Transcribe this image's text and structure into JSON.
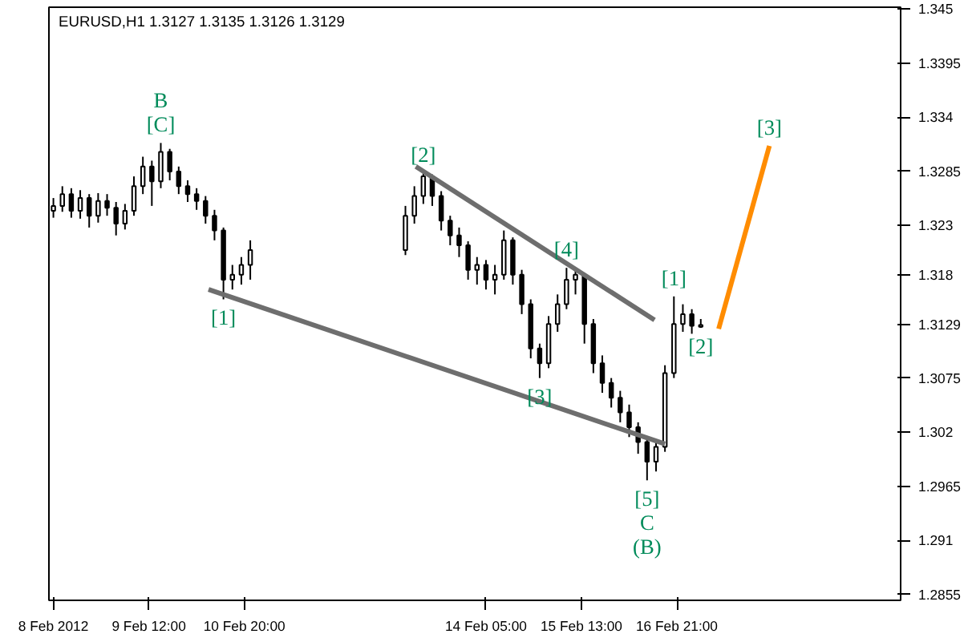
{
  "chart_data": {
    "type": "candlestick",
    "title": "EURUSD,H1  1.3127 1.3135 1.3126 1.3129",
    "color": "#000000",
    "x": [
      "2012-02-08T04:00",
      "2012-02-08T07:00",
      "2012-02-08T10:00",
      "2012-02-08T13:00",
      "2012-02-08T16:00",
      "2012-02-08T19:00",
      "2012-02-08T22:00",
      "2012-02-09T01:00",
      "2012-02-09T04:00",
      "2012-02-09T07:00",
      "2012-02-09T10:00",
      "2012-02-09T13:00",
      "2012-02-09T16:00",
      "2012-02-09T19:00",
      "2012-02-09T22:00",
      "2012-02-10T01:00",
      "2012-02-10T04:00",
      "2012-02-10T07:00",
      "2012-02-10T10:00",
      "2012-02-10T13:00",
      "2012-02-10T16:00",
      "2012-02-10T19:00",
      "2012-02-10T22:00",
      "2012-02-13T02:00",
      "2012-02-13T05:00",
      "2012-02-13T08:00",
      "2012-02-13T11:00",
      "2012-02-13T14:00",
      "2012-02-13T17:00",
      "2012-02-13T20:00",
      "2012-02-13T23:00",
      "2012-02-14T02:00",
      "2012-02-14T05:00",
      "2012-02-14T08:00",
      "2012-02-14T11:00",
      "2012-02-14T14:00",
      "2012-02-14T17:00",
      "2012-02-14T20:00",
      "2012-02-14T23:00",
      "2012-02-15T02:00",
      "2012-02-15T05:00",
      "2012-02-15T08:00",
      "2012-02-15T11:00",
      "2012-02-15T14:00",
      "2012-02-15T17:00",
      "2012-02-15T20:00",
      "2012-02-15T23:00",
      "2012-02-16T02:00",
      "2012-02-16T05:00",
      "2012-02-16T08:00",
      "2012-02-16T11:00",
      "2012-02-16T14:00",
      "2012-02-16T17:00",
      "2012-02-16T20:00",
      "2012-02-16T23:00",
      "2012-02-17T02:00",
      "2012-02-17T05:00"
    ],
    "ohlc": [
      [
        1.3245,
        1.3258,
        1.3238,
        1.325
      ],
      [
        1.325,
        1.327,
        1.3244,
        1.3262
      ],
      [
        1.3262,
        1.3268,
        1.3238,
        1.3245
      ],
      [
        1.3245,
        1.3266,
        1.3237,
        1.3258
      ],
      [
        1.3258,
        1.3262,
        1.3228,
        1.324
      ],
      [
        1.324,
        1.3263,
        1.3233,
        1.3255
      ],
      [
        1.3255,
        1.3262,
        1.324,
        1.3248
      ],
      [
        1.3248,
        1.3254,
        1.322,
        1.3232
      ],
      [
        1.3232,
        1.3252,
        1.3226,
        1.3245
      ],
      [
        1.3245,
        1.328,
        1.324,
        1.327
      ],
      [
        1.327,
        1.33,
        1.3262,
        1.329
      ],
      [
        1.329,
        1.3296,
        1.325,
        1.3275
      ],
      [
        1.3275,
        1.3314,
        1.3268,
        1.3305
      ],
      [
        1.3305,
        1.3308,
        1.3276,
        1.3285
      ],
      [
        1.3285,
        1.329,
        1.3262,
        1.327
      ],
      [
        1.327,
        1.3276,
        1.3254,
        1.3262
      ],
      [
        1.3262,
        1.3268,
        1.3246,
        1.3255
      ],
      [
        1.3255,
        1.326,
        1.3232,
        1.324
      ],
      [
        1.324,
        1.3246,
        1.3215,
        1.3225
      ],
      [
        1.3225,
        1.3228,
        1.3155,
        1.3175
      ],
      [
        1.3175,
        1.319,
        1.3165,
        1.318
      ],
      [
        1.318,
        1.3198,
        1.317,
        1.319
      ],
      [
        1.319,
        1.3215,
        1.3175,
        1.3205
      ],
      [
        1.3205,
        1.325,
        1.32,
        1.324
      ],
      [
        1.324,
        1.327,
        1.3232,
        1.326
      ],
      [
        1.326,
        1.3283,
        1.3252,
        1.328
      ],
      [
        1.328,
        1.3282,
        1.325,
        1.326
      ],
      [
        1.326,
        1.3265,
        1.3225,
        1.3235
      ],
      [
        1.3235,
        1.324,
        1.321,
        1.322
      ],
      [
        1.322,
        1.3228,
        1.3198,
        1.321
      ],
      [
        1.321,
        1.3214,
        1.3175,
        1.3185
      ],
      [
        1.3185,
        1.3198,
        1.317,
        1.319
      ],
      [
        1.319,
        1.3195,
        1.3165,
        1.3175
      ],
      [
        1.3175,
        1.319,
        1.316,
        1.318
      ],
      [
        1.318,
        1.3225,
        1.3175,
        1.3215
      ],
      [
        1.3215,
        1.3218,
        1.317,
        1.318
      ],
      [
        1.318,
        1.3185,
        1.314,
        1.315
      ],
      [
        1.315,
        1.3155,
        1.3095,
        1.3105
      ],
      [
        1.3105,
        1.311,
        1.3075,
        1.309
      ],
      [
        1.309,
        1.3138,
        1.3085,
        1.313
      ],
      [
        1.313,
        1.316,
        1.3122,
        1.315
      ],
      [
        1.315,
        1.3187,
        1.3145,
        1.3175
      ],
      [
        1.3175,
        1.3185,
        1.316,
        1.318
      ],
      [
        1.318,
        1.3182,
        1.311,
        1.313
      ],
      [
        1.313,
        1.3135,
        1.308,
        1.309
      ],
      [
        1.309,
        1.3098,
        1.306,
        1.307
      ],
      [
        1.307,
        1.3075,
        1.3045,
        1.3055
      ],
      [
        1.3055,
        1.3062,
        1.303,
        1.304
      ],
      [
        1.304,
        1.3048,
        1.3015,
        1.3025
      ],
      [
        1.3025,
        1.303,
        1.2998,
        1.301
      ],
      [
        1.301,
        1.3015,
        1.2971,
        1.299
      ],
      [
        1.299,
        1.3012,
        1.298,
        1.3005
      ],
      [
        1.3005,
        1.3088,
        1.3,
        1.308
      ],
      [
        1.308,
        1.3158,
        1.3075,
        1.313
      ],
      [
        1.313,
        1.315,
        1.3122,
        1.314
      ],
      [
        1.314,
        1.3145,
        1.312,
        1.3128
      ],
      [
        1.3127,
        1.3135,
        1.3126,
        1.3129
      ]
    ],
    "series": [
      {
        "type": "line",
        "color": "#6e6e6e",
        "x": [
          "2012-02-13T05:30",
          "2012-02-16T13:30"
        ],
        "values": [
          1.329,
          1.3134
        ]
      },
      {
        "type": "line",
        "color": "#6e6e6e",
        "x": [
          "2012-02-10T08:00",
          "2012-02-16T17:00"
        ],
        "values": [
          1.3165,
          1.3008
        ]
      },
      {
        "type": "line",
        "color": "#ff8c00",
        "x": [
          "2012-02-17T11:00",
          "2012-02-18T04:00"
        ],
        "values": [
          1.3125,
          1.3311
        ]
      }
    ],
    "xlim": [
      "2012-02-08T02:30",
      "2012-02-20T00:00"
    ],
    "xticks": [
      {
        "value": "2012-02-08T04:00",
        "label": "8 Feb 2012"
      },
      {
        "value": "2012-02-09T12:00",
        "label": "9 Feb 12:00"
      },
      {
        "value": "2012-02-10T20:00",
        "label": "10 Feb 20:00"
      },
      {
        "value": "2012-02-14T05:00",
        "label": "14 Feb 05:00"
      },
      {
        "value": "2012-02-15T13:00",
        "label": "15 Feb 13:00"
      },
      {
        "value": "2012-02-16T21:00",
        "label": "16 Feb 21:00"
      }
    ],
    "ylim": [
      1.2849,
      1.3452
    ],
    "yticks": [
      1.2855,
      1.291,
      1.2965,
      1.302,
      1.3075,
      1.3129,
      1.318,
      1.323,
      1.3285,
      1.334,
      1.3395,
      1.345
    ],
    "annotations": [
      {
        "text": "[C]",
        "x": "2012-02-09T16:00",
        "y": 1.3314
      },
      {
        "text": "B",
        "x": "2012-02-09T16:00",
        "y": 1.3314
      },
      {
        "text": "[2]",
        "x": "2012-02-13T08:00",
        "y": 1.3283
      },
      {
        "text": "[1]",
        "x": "2012-02-10T13:00",
        "y": 1.3155
      },
      {
        "text": "[4]",
        "x": "2012-02-15T08:00",
        "y": 1.3187
      },
      {
        "text": "[3]",
        "x": "2012-02-14T23:00",
        "y": 1.3075
      },
      {
        "text": "[5]",
        "x": "2012-02-16T11:00",
        "y": 1.2971
      },
      {
        "text": "C",
        "x": "2012-02-16T11:00",
        "y": 1.2971
      },
      {
        "text": "(B)",
        "x": "2012-02-16T11:00",
        "y": 1.2971
      },
      {
        "text": "[1]",
        "x": "2012-02-16T20:00",
        "y": 1.3158
      },
      {
        "text": "[2]",
        "x": "2012-02-17T05:00",
        "y": 1.3126
      },
      {
        "text": "[3]",
        "x": "2012-02-18T04:00",
        "y": 1.3311
      }
    ],
    "grid": false
  }
}
